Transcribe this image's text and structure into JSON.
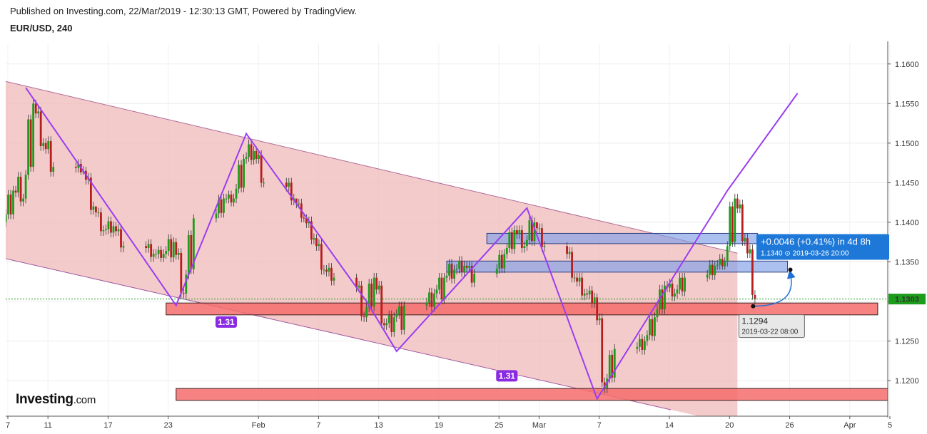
{
  "header": {
    "published": "Published on Investing.com, 22/Mar/2019 - 12:30:13 GMT, Powered by TradingView.",
    "symbol": "EUR/USD, 240"
  },
  "logo": {
    "brand": "Investing",
    "suffix": ".com"
  },
  "chart_data": {
    "type": "candlestick",
    "title": "EUR/USD, 240",
    "x_ticks": [
      "7",
      "11",
      "17",
      "23",
      "Feb",
      "7",
      "13",
      "19",
      "25",
      "Mar",
      "7",
      "14",
      "20",
      "26",
      "Apr",
      "5"
    ],
    "y_ticks": [
      "1.1600",
      "1.1550",
      "1.1500",
      "1.1450",
      "1.1400",
      "1.1350",
      "1.1300",
      "1.1250",
      "1.1200"
    ],
    "ylim": [
      1.1155,
      1.1625
    ],
    "xlim": [
      "2019-01-07",
      "2019-04-05"
    ],
    "current_price": {
      "label": "1.1303",
      "value": 1.1303,
      "color": "#1b9c1b"
    },
    "channel": {
      "color": "#f0b5b5",
      "upper": [
        [
          "2019-01-07",
          1.1578
        ],
        [
          "2019-03-21",
          1.1361
        ]
      ],
      "lower": [
        [
          "2019-01-07",
          1.1354
        ],
        [
          "2019-03-21",
          1.1144
        ]
      ]
    },
    "zigzag": {
      "color": "#9a3ef0",
      "points": [
        [
          "2019-01-09",
          1.157
        ],
        [
          "2019-01-24",
          1.1295
        ],
        [
          "2019-01-31",
          1.1512
        ],
        [
          "2019-02-12",
          1.13
        ],
        [
          "2019-02-15",
          1.1237
        ],
        [
          "2019-02-28",
          1.1418
        ],
        [
          "2019-03-07",
          1.1177
        ],
        [
          "2019-03-20",
          1.144
        ],
        [
          "2019-03-27",
          1.1563
        ]
      ]
    },
    "fib_labels": [
      {
        "label": "1.31",
        "at": [
          "2019-01-29",
          1.1274
        ]
      },
      {
        "label": "1.31",
        "at": [
          "2019-02-26",
          1.1206
        ]
      }
    ],
    "zones": [
      {
        "color": "red",
        "from": "2019-01-23",
        "to": "2019-04-04",
        "y": [
          1.1283,
          1.1298
        ]
      },
      {
        "color": "red",
        "from": "2019-01-24",
        "to": "2019-04-05",
        "y": [
          1.1175,
          1.119
        ]
      },
      {
        "color": "blue",
        "from": "2019-02-24",
        "to": "2019-03-23",
        "y": [
          1.1373,
          1.1386
        ]
      },
      {
        "color": "blue",
        "from": "2019-02-20",
        "to": "2019-03-26",
        "y": [
          1.1337,
          1.1351
        ]
      }
    ],
    "projection": {
      "main": "+0.0046 (+0.41%) in 4d 8h",
      "sub": "1.1340 ⊙ 2019-03-26  20:00",
      "from": [
        "2019-03-22",
        1.1294
      ],
      "to": [
        "2019-03-26",
        1.134
      ]
    },
    "point_label": {
      "value": "1.1294",
      "time": "2019-03-22 08:00"
    },
    "candles": [
      [
        "2019-01-07",
        1.14,
        1.145,
        1.139,
        1.144
      ],
      [
        "2019-01-08",
        1.144,
        1.148,
        1.142,
        1.143
      ],
      [
        "2019-01-09",
        1.143,
        1.157,
        1.142,
        1.155
      ],
      [
        "2019-01-10",
        1.155,
        1.1555,
        1.148,
        1.15
      ],
      [
        "2019-01-11",
        1.15,
        1.152,
        1.145,
        1.147
      ],
      [
        "2019-01-14",
        1.147,
        1.148,
        1.146,
        1.1465
      ],
      [
        "2019-01-15",
        1.1465,
        1.147,
        1.14,
        1.142
      ],
      [
        "2019-01-16",
        1.142,
        1.142,
        1.138,
        1.139
      ],
      [
        "2019-01-17",
        1.139,
        1.141,
        1.138,
        1.1395
      ],
      [
        "2019-01-18",
        1.1395,
        1.14,
        1.136,
        1.137
      ],
      [
        "2019-01-21",
        1.137,
        1.138,
        1.135,
        1.136
      ],
      [
        "2019-01-22",
        1.136,
        1.137,
        1.135,
        1.136
      ],
      [
        "2019-01-23",
        1.136,
        1.139,
        1.134,
        1.1375
      ],
      [
        "2019-01-24",
        1.1375,
        1.138,
        1.1295,
        1.131
      ],
      [
        "2019-01-25",
        1.131,
        1.141,
        1.13,
        1.1405
      ],
      [
        "2019-01-28",
        1.1405,
        1.144,
        1.14,
        1.143
      ],
      [
        "2019-01-29",
        1.143,
        1.144,
        1.142,
        1.143
      ],
      [
        "2019-01-30",
        1.143,
        1.149,
        1.142,
        1.148
      ],
      [
        "2019-01-31",
        1.148,
        1.1512,
        1.147,
        1.149
      ],
      [
        "2019-02-01",
        1.149,
        1.15,
        1.144,
        1.145
      ],
      [
        "2019-02-04",
        1.145,
        1.146,
        1.142,
        1.143
      ],
      [
        "2019-02-05",
        1.143,
        1.143,
        1.14,
        1.1405
      ],
      [
        "2019-02-06",
        1.1405,
        1.141,
        1.137,
        1.138
      ],
      [
        "2019-02-07",
        1.138,
        1.1385,
        1.133,
        1.134
      ],
      [
        "2019-02-08",
        1.134,
        1.135,
        1.132,
        1.133
      ],
      [
        "2019-02-11",
        1.133,
        1.1335,
        1.127,
        1.128
      ],
      [
        "2019-02-12",
        1.128,
        1.134,
        1.127,
        1.133
      ],
      [
        "2019-02-13",
        1.133,
        1.134,
        1.126,
        1.127
      ],
      [
        "2019-02-14",
        1.127,
        1.129,
        1.1245,
        1.128
      ],
      [
        "2019-02-15",
        1.128,
        1.13,
        1.1237,
        1.1295
      ],
      [
        "2019-02-18",
        1.1295,
        1.132,
        1.128,
        1.131
      ],
      [
        "2019-02-19",
        1.131,
        1.134,
        1.128,
        1.133
      ],
      [
        "2019-02-20",
        1.133,
        1.136,
        1.132,
        1.134
      ],
      [
        "2019-02-21",
        1.134,
        1.136,
        1.133,
        1.1345
      ],
      [
        "2019-02-22",
        1.1345,
        1.135,
        1.131,
        1.1335
      ],
      [
        "2019-02-25",
        1.1335,
        1.137,
        1.133,
        1.136
      ],
      [
        "2019-02-26",
        1.136,
        1.14,
        1.135,
        1.139
      ],
      [
        "2019-02-27",
        1.139,
        1.14,
        1.136,
        1.137
      ],
      [
        "2019-02-28",
        1.137,
        1.142,
        1.136,
        1.14
      ],
      [
        "2019-03-01",
        1.14,
        1.14,
        1.136,
        1.137
      ],
      [
        "2019-03-04",
        1.137,
        1.1375,
        1.132,
        1.133
      ],
      [
        "2019-03-05",
        1.133,
        1.134,
        1.13,
        1.131
      ],
      [
        "2019-03-06",
        1.131,
        1.132,
        1.129,
        1.1305
      ],
      [
        "2019-03-07",
        1.1305,
        1.131,
        1.1177,
        1.119
      ],
      [
        "2019-03-08",
        1.119,
        1.125,
        1.118,
        1.124
      ],
      [
        "2019-03-11",
        1.124,
        1.126,
        1.123,
        1.125
      ],
      [
        "2019-03-12",
        1.125,
        1.129,
        1.124,
        1.128
      ],
      [
        "2019-03-13",
        1.128,
        1.133,
        1.127,
        1.132
      ],
      [
        "2019-03-14",
        1.132,
        1.133,
        1.13,
        1.131
      ],
      [
        "2019-03-15",
        1.131,
        1.134,
        1.13,
        1.133
      ],
      [
        "2019-03-18",
        1.133,
        1.1355,
        1.1325,
        1.1345
      ],
      [
        "2019-03-19",
        1.1345,
        1.136,
        1.134,
        1.135
      ],
      [
        "2019-03-20",
        1.135,
        1.145,
        1.134,
        1.143
      ],
      [
        "2019-03-21",
        1.143,
        1.144,
        1.136,
        1.138
      ],
      [
        "2019-03-22",
        1.138,
        1.139,
        1.1294,
        1.1303
      ]
    ]
  }
}
